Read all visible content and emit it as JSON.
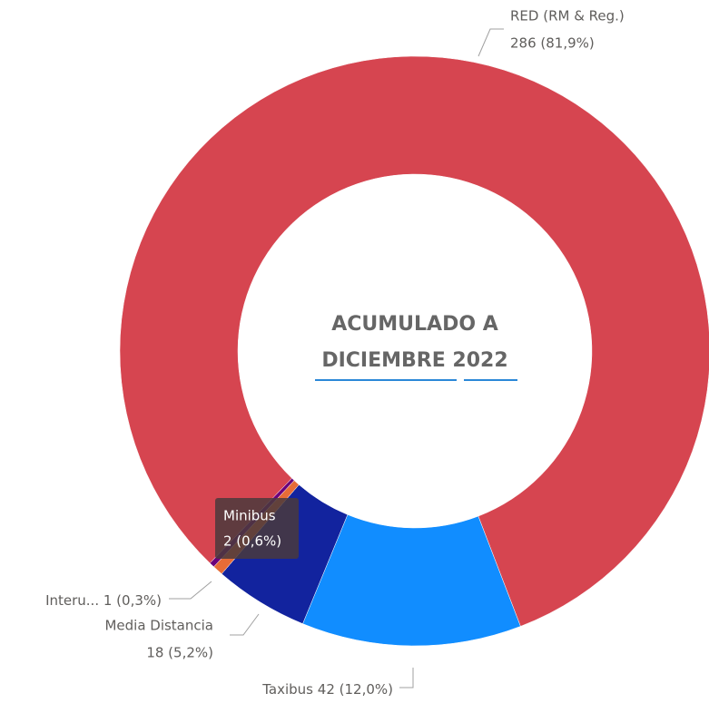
{
  "chart_data": {
    "type": "donut",
    "title_lines": [
      "ACUMULADO A",
      "DICIEMBRE 2022"
    ],
    "categories": [
      "RED (RM & Reg.)",
      "Taxibus",
      "Media Distancia",
      "Minibus",
      "Interu..."
    ],
    "values": [
      286,
      42,
      18,
      2,
      1
    ],
    "value_labels": [
      "286 (81,9%)",
      "42 (12,0%)",
      "18 (5,2%)",
      "2 (0,6%)",
      "1 (0,3%)"
    ],
    "colors": [
      "#d64550",
      "#118dff",
      "#12239e",
      "#e66c37",
      "#6b007b"
    ],
    "start_angle": 224,
    "tooltip": {
      "category": "Minibus",
      "value_label": "2 (0,6%)"
    }
  }
}
